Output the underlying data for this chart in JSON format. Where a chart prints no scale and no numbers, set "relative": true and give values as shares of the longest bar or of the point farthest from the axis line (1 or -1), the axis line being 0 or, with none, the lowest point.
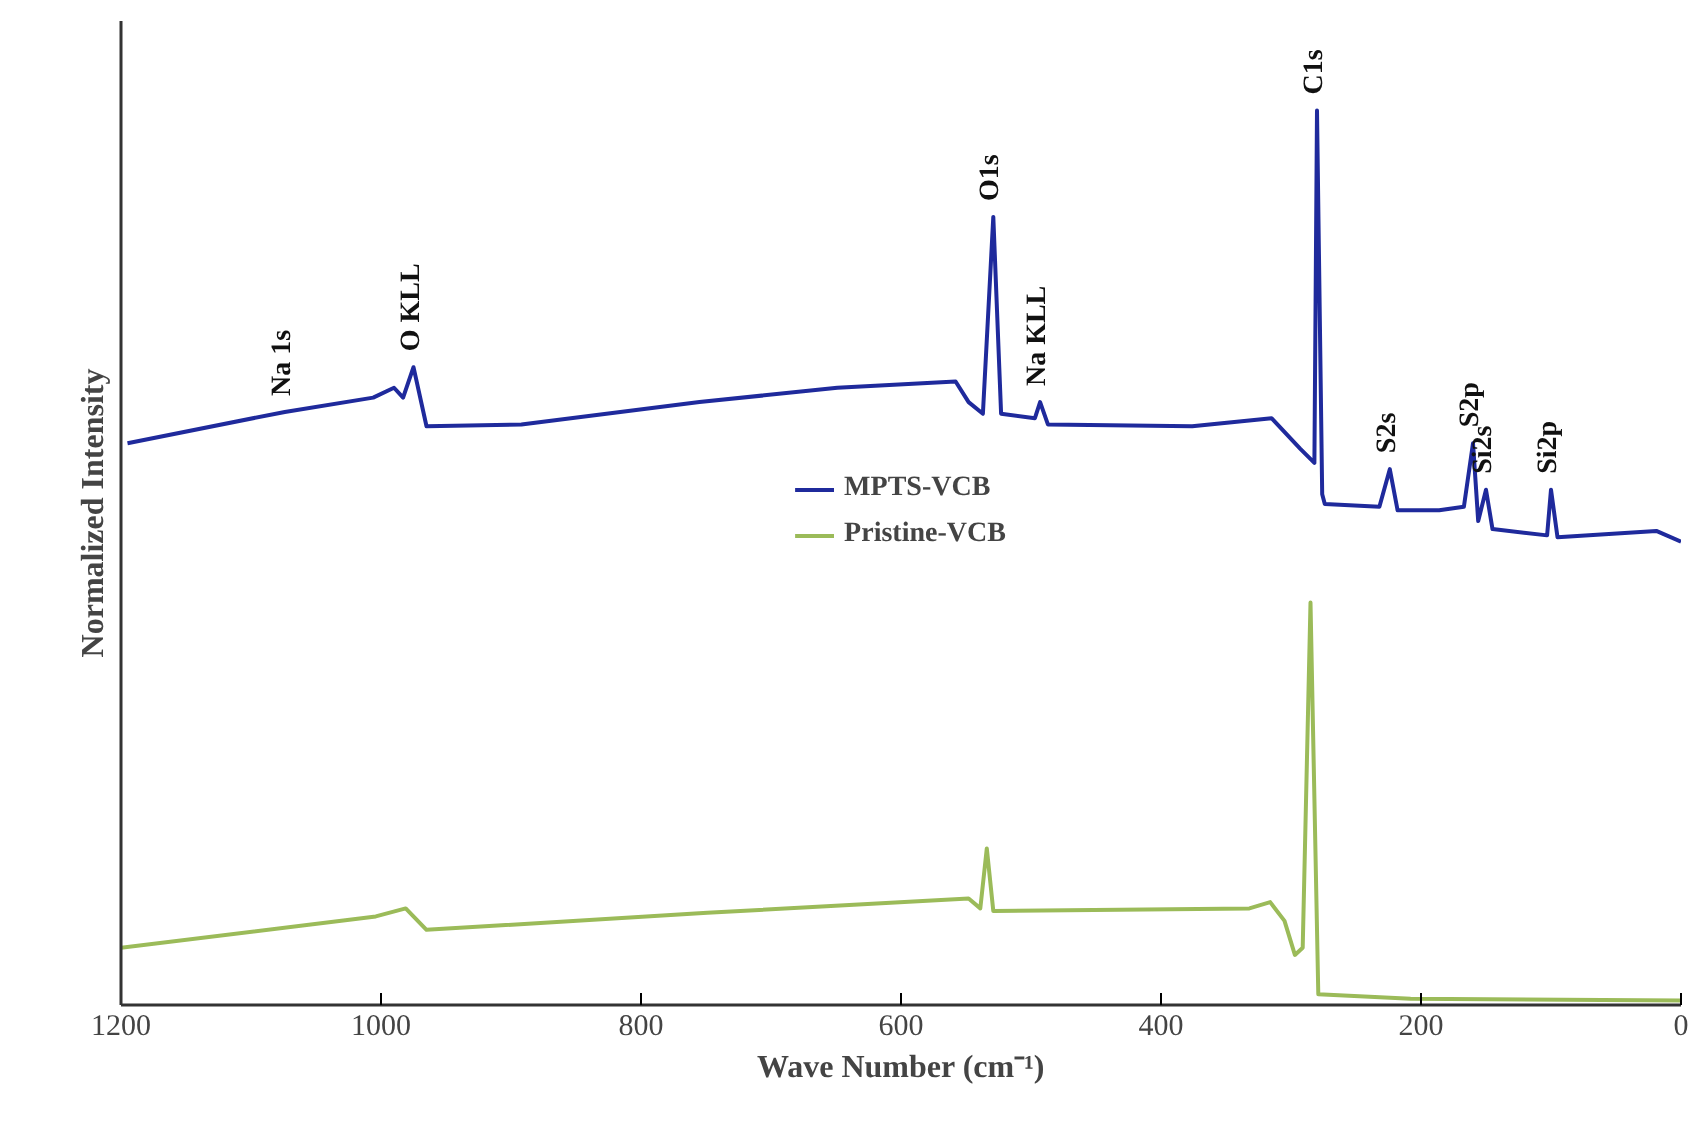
{
  "chart_data": {
    "type": "line",
    "relative": true,
    "xlabel": "Wave Number (cm⁻¹)",
    "ylabel": "Normalized Intensity",
    "xlim": [
      1200,
      0
    ],
    "xticks": [
      1200,
      1000,
      800,
      600,
      400,
      200,
      0
    ],
    "grid": false,
    "legend": "center",
    "marker": "none",
    "line_style": "solid",
    "series": [
      {
        "name": "MPTS-VCB",
        "color": "#1f2a9c",
        "x": [
          1195,
          1074,
          1006,
          990,
          983,
          975,
          965,
          892,
          755,
          649,
          558,
          548,
          537,
          529,
          523,
          497,
          493,
          487,
          376,
          315,
          293,
          282,
          280,
          276,
          274,
          232,
          224,
          218,
          186,
          167,
          160,
          156,
          150,
          145,
          103,
          100,
          95,
          19,
          0
        ],
        "values": [
          0.628,
          0.663,
          0.679,
          0.69,
          0.679,
          0.713,
          0.647,
          0.649,
          0.674,
          0.69,
          0.697,
          0.674,
          0.661,
          0.881,
          0.661,
          0.656,
          0.674,
          0.649,
          0.647,
          0.656,
          0.622,
          0.606,
          1.0,
          0.571,
          0.56,
          0.557,
          0.599,
          0.553,
          0.553,
          0.557,
          0.628,
          0.541,
          0.576,
          0.532,
          0.525,
          0.576,
          0.523,
          0.53,
          0.518
        ]
      },
      {
        "name": "Pristine-VCB",
        "color": "#9bbb59",
        "x": [
          1200,
          1004,
          981,
          965,
          749,
          548,
          539,
          534,
          529,
          332,
          316,
          305,
          297,
          291,
          285,
          279,
          208,
          0
        ],
        "values": [
          0.064,
          0.099,
          0.108,
          0.084,
          0.103,
          0.119,
          0.108,
          0.175,
          0.105,
          0.108,
          0.115,
          0.094,
          0.056,
          0.064,
          0.45,
          0.012,
          0.007,
          0.005
        ]
      }
    ],
    "annotations": [
      {
        "text": "Na 1s",
        "x": 1074,
        "y": 0.663
      },
      {
        "text": "O KLL",
        "x": 975,
        "y": 0.713
      },
      {
        "text": "O1s",
        "x": 529,
        "y": 0.881
      },
      {
        "text": "Na KLL",
        "x": 493,
        "y": 0.674
      },
      {
        "text": "C1s",
        "x": 280,
        "y": 1.0
      },
      {
        "text": "S2s",
        "x": 224,
        "y": 0.599
      },
      {
        "text": "S2p",
        "x": 160,
        "y": 0.628
      },
      {
        "text": "Si2s",
        "x": 150,
        "y": 0.576
      },
      {
        "text": "Si2p",
        "x": 100,
        "y": 0.576
      }
    ]
  }
}
